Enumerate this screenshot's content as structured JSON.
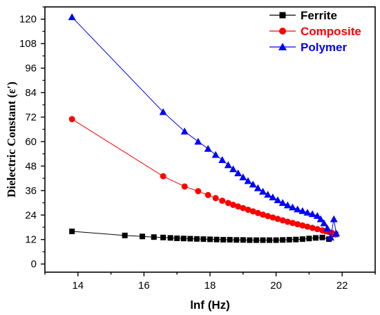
{
  "chart_data": {
    "type": "line",
    "xlabel": "lnf (Hz)",
    "ylabel": "Dielectric Constant (ε′)",
    "xlim": [
      13,
      23
    ],
    "ylim": [
      -4,
      126
    ],
    "x_ticks": [
      "14",
      "16",
      "18",
      "20",
      "22"
    ],
    "y_ticks": [
      "0",
      "12",
      "24",
      "36",
      "48",
      "60",
      "72",
      "84",
      "96",
      "108",
      "120"
    ],
    "grid": false,
    "legend_position": "top-right",
    "series": [
      {
        "name": "Ferrite",
        "color": "#000000",
        "marker": "square",
        "x": [
          13.82,
          15.42,
          15.95,
          16.3,
          16.58,
          16.8,
          17.0,
          17.2,
          17.4,
          17.6,
          17.8,
          18.0,
          18.2,
          18.4,
          18.6,
          18.8,
          19.0,
          19.2,
          19.4,
          19.6,
          19.8,
          20.0,
          20.2,
          20.4,
          20.6,
          20.8,
          21.0,
          21.2,
          21.4,
          21.6,
          21.8
        ],
        "y": [
          16,
          14,
          13.5,
          13.2,
          13,
          12.8,
          12.6,
          12.5,
          12.4,
          12.3,
          12.2,
          12.1,
          12.0,
          11.9,
          11.9,
          11.8,
          11.8,
          11.7,
          11.7,
          11.7,
          11.7,
          11.7,
          11.8,
          11.9,
          12.0,
          12.2,
          12.5,
          12.8,
          13.0,
          12.2,
          14.5
        ]
      },
      {
        "name": "Composite",
        "color": "#ff0000",
        "marker": "circle",
        "x": [
          13.82,
          16.58,
          17.23,
          17.64,
          17.94,
          18.17,
          18.37,
          18.55,
          18.7,
          18.85,
          19.0,
          19.15,
          19.3,
          19.45,
          19.6,
          19.75,
          19.9,
          20.05,
          20.2,
          20.35,
          20.5,
          20.65,
          20.8,
          20.95,
          21.1,
          21.25,
          21.4,
          21.5,
          21.6,
          21.7,
          21.8
        ],
        "y": [
          71,
          43,
          38,
          35.7,
          33.8,
          32.3,
          31,
          29.9,
          29,
          28.2,
          27.4,
          26.6,
          25.8,
          25,
          24.2,
          23.5,
          22.8,
          22.1,
          21.4,
          20.7,
          20.1,
          19.5,
          18.9,
          18.3,
          17.7,
          17.1,
          16.5,
          16.1,
          15.7,
          15.2,
          14.5
        ]
      },
      {
        "name": "Polymer",
        "color": "#0000ff",
        "marker": "triangle",
        "x": [
          13.82,
          16.58,
          17.23,
          17.64,
          17.94,
          18.17,
          18.37,
          18.55,
          18.7,
          18.85,
          19.0,
          19.15,
          19.3,
          19.45,
          19.6,
          19.75,
          19.9,
          20.05,
          20.2,
          20.35,
          20.5,
          20.65,
          20.8,
          20.95,
          21.1,
          21.25,
          21.35,
          21.45,
          21.55,
          21.65,
          21.75,
          21.82
        ],
        "y": [
          121,
          74.5,
          65,
          60,
          56.5,
          53.5,
          51,
          48.5,
          46.5,
          44.5,
          42.5,
          40.7,
          39,
          37.2,
          35.5,
          34,
          32.7,
          31.3,
          30,
          28.8,
          27.8,
          26.8,
          26,
          25.2,
          24.5,
          23.6,
          22,
          20,
          17.5,
          13,
          22,
          15
        ]
      }
    ]
  }
}
